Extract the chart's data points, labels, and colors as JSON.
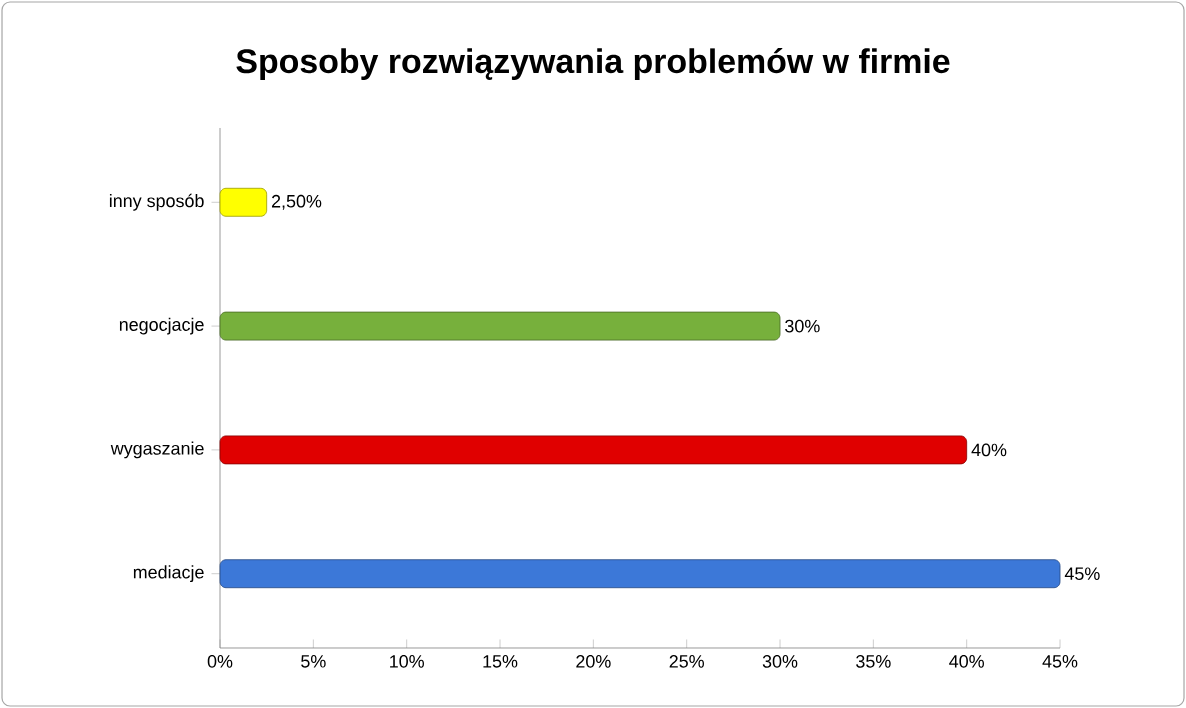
{
  "chart_data": {
    "type": "bar",
    "orientation": "horizontal",
    "title": "Sposoby rozwiązywania problemów w firmie",
    "categories": [
      "inny sposób",
      "negocjacje",
      "wygaszanie",
      "mediacje"
    ],
    "values": [
      2.5,
      30,
      40,
      45
    ],
    "colors": [
      "#ffff00",
      "#77b03c",
      "#e00000",
      "#3c78d8"
    ],
    "value_labels": [
      "2,50%",
      "30%",
      "40%",
      "45%"
    ],
    "xlim": [
      0,
      45
    ],
    "xticks": [
      {
        "value": 0,
        "label": "0%"
      },
      {
        "value": 5,
        "label": "5%"
      },
      {
        "value": 10,
        "label": "10%"
      },
      {
        "value": 15,
        "label": "15%"
      },
      {
        "value": 20,
        "label": "20%"
      },
      {
        "value": 25,
        "label": "25%"
      },
      {
        "value": 30,
        "label": "30%"
      },
      {
        "value": 35,
        "label": "35%"
      },
      {
        "value": 40,
        "label": "40%"
      },
      {
        "value": 45,
        "label": "45%"
      }
    ],
    "grid": false
  }
}
